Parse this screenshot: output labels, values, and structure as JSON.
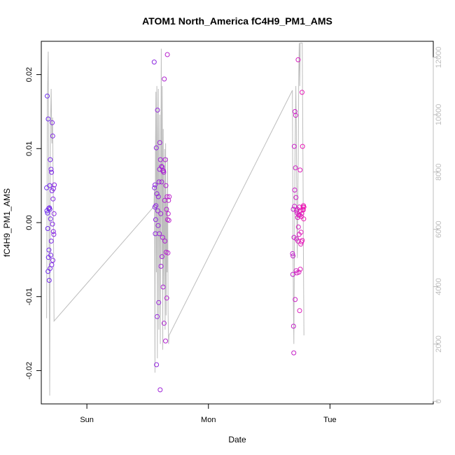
{
  "chart_data": {
    "type": "scatter",
    "title": "ATOM1 North_America fC4H9_PM1_AMS",
    "xlabel": "Date",
    "ylabel": "fC4H9_PM1_AMS",
    "x_range_days": [
      -0.375,
      2.85
    ],
    "x_ticks": [
      {
        "label": "Sun",
        "value": 0
      },
      {
        "label": "Mon",
        "value": 1
      },
      {
        "label": "Tue",
        "value": 2
      }
    ],
    "ylim": [
      -0.0245,
      0.0245
    ],
    "y_ticks": [
      -0.02,
      -0.01,
      0.0,
      0.01,
      0.02
    ],
    "y_tick_labels": [
      "-0.02",
      "-0.01",
      "0.00",
      "0.01",
      "0.02"
    ],
    "y2lim": [
      -90,
      12560
    ],
    "y2_ticks": [
      0,
      2000,
      4000,
      6000,
      8000,
      10000,
      12000
    ],
    "colors": {
      "line": "#bdbdbd",
      "points_start": "#6a2bf0",
      "points_end": "#ee1ab4",
      "axis": "#000000"
    },
    "series": [
      {
        "type": "points",
        "values": [
          [
            -0.331,
            0.0047
          ],
          [
            -0.329,
            0.0016
          ],
          [
            -0.326,
            0.0171
          ],
          [
            -0.324,
            0.0013
          ],
          [
            -0.322,
            -0.0008
          ],
          [
            -0.32,
            -0.0066
          ],
          [
            -0.318,
            0.014
          ],
          [
            -0.316,
            -0.0047
          ],
          [
            -0.314,
            0.0019
          ],
          [
            -0.312,
            -0.0037
          ],
          [
            -0.31,
            -0.0078
          ],
          [
            -0.308,
            0.002
          ],
          [
            -0.306,
            0.005
          ],
          [
            -0.304,
            0.0018
          ],
          [
            -0.303,
            -0.0062
          ],
          [
            -0.301,
            0.0085
          ],
          [
            -0.299,
            0.0005
          ],
          [
            -0.297,
            -0.0044
          ],
          [
            -0.295,
            0.0072
          ],
          [
            -0.293,
            -0.0025
          ],
          [
            -0.291,
            0.0068
          ],
          [
            -0.289,
            -0.0057
          ],
          [
            -0.287,
            0.0043
          ],
          [
            -0.285,
            0.0135
          ],
          [
            -0.283,
            -0.0002
          ],
          [
            -0.281,
            0.0117
          ],
          [
            -0.28,
            -0.0051
          ],
          [
            -0.278,
            0.0032
          ],
          [
            -0.276,
            -0.0012
          ],
          [
            -0.274,
            0.0046
          ],
          [
            -0.272,
            -0.0016
          ],
          [
            -0.27,
            0.0012
          ],
          [
            -0.268,
            0.0051
          ],
          [
            0.554,
            0.0217
          ],
          [
            0.556,
            0.0047
          ],
          [
            0.559,
            0.0021
          ],
          [
            0.561,
            0.0051
          ],
          [
            0.563,
            -0.0015
          ],
          [
            0.566,
            0.0004
          ],
          [
            0.568,
            0.0023
          ],
          [
            0.571,
            0.0101
          ],
          [
            0.573,
            -0.0192
          ],
          [
            0.576,
            0.0039
          ],
          [
            0.578,
            -0.0127
          ],
          [
            0.581,
            0.0152
          ],
          [
            0.583,
            0.0016
          ],
          [
            0.586,
            -0.0004
          ],
          [
            0.588,
            0.0035
          ],
          [
            0.591,
            -0.0108
          ],
          [
            0.593,
            0.0055
          ],
          [
            0.596,
            -0.0015
          ],
          [
            0.598,
            0.0072
          ],
          [
            0.6,
            0.0108
          ],
          [
            0.603,
            -0.0226
          ],
          [
            0.605,
            0.0085
          ],
          [
            0.608,
            0.0012
          ],
          [
            0.61,
            -0.0059
          ],
          [
            0.613,
            0.0076
          ],
          [
            0.615,
            0.0055
          ],
          [
            0.618,
            -0.0046
          ],
          [
            0.62,
            0.0075
          ],
          [
            0.623,
            -0.002
          ],
          [
            0.625,
            0.007
          ],
          [
            0.627,
            -0.0087
          ],
          [
            0.63,
            0.007
          ],
          [
            0.632,
            0.0068
          ],
          [
            0.635,
            -0.0136
          ],
          [
            0.637,
            0.0194
          ],
          [
            0.64,
            0.003
          ],
          [
            0.642,
            -0.0025
          ],
          [
            0.645,
            0.0085
          ],
          [
            0.647,
            -0.016
          ],
          [
            0.65,
            0.005
          ],
          [
            0.652,
            -0.004
          ],
          [
            0.655,
            0.0018
          ],
          [
            0.657,
            -0.0102
          ],
          [
            0.66,
            0.0035
          ],
          [
            0.662,
            0.0227
          ],
          [
            0.664,
            0.0004
          ],
          [
            0.667,
            -0.0041
          ],
          [
            0.669,
            0.0012
          ],
          [
            0.672,
            0.003
          ],
          [
            0.675,
            0.0003
          ],
          [
            0.677,
            0.0035
          ],
          [
            1.692,
            -0.0042
          ],
          [
            1.694,
            -0.007
          ],
          [
            1.696,
            -0.0045
          ],
          [
            1.698,
            0.0018
          ],
          [
            1.7,
            -0.014
          ],
          [
            1.702,
            -0.0176
          ],
          [
            1.704,
            -0.002
          ],
          [
            1.706,
            0.0103
          ],
          [
            1.708,
            0.0022
          ],
          [
            1.71,
            0.0044
          ],
          [
            1.712,
            0.015
          ],
          [
            1.714,
            -0.0104
          ],
          [
            1.716,
            0.0074
          ],
          [
            1.718,
            0.0145
          ],
          [
            1.72,
            0.0034
          ],
          [
            1.722,
            -0.0065
          ],
          [
            1.724,
            0.0016
          ],
          [
            1.726,
            -0.0022
          ],
          [
            1.728,
            -0.0068
          ],
          [
            1.73,
            0.0013
          ],
          [
            1.732,
            0.0018
          ],
          [
            1.734,
            0.0007
          ],
          [
            1.736,
            -0.0025
          ],
          [
            1.738,
            0.022
          ],
          [
            1.74,
            -0.0006
          ],
          [
            1.742,
            0.001
          ],
          [
            1.744,
            -0.0067
          ],
          [
            1.746,
            -0.0016
          ],
          [
            1.748,
            0.0021
          ],
          [
            1.75,
            -0.0119
          ],
          [
            1.752,
            0.001
          ],
          [
            1.754,
            0.0071
          ],
          [
            1.756,
            -0.0063
          ],
          [
            1.758,
            0.0016
          ],
          [
            1.76,
            -0.0029
          ],
          [
            1.762,
            -0.0013
          ],
          [
            1.764,
            0.0008
          ],
          [
            1.766,
            -0.0026
          ],
          [
            1.768,
            0.0012
          ],
          [
            1.77,
            0.0176
          ],
          [
            1.772,
            -0.0024
          ],
          [
            1.774,
            0.0103
          ],
          [
            1.776,
            0.0018
          ],
          [
            1.778,
            0.0021
          ],
          [
            1.78,
            0.0017
          ],
          [
            1.782,
            0.0023
          ],
          [
            1.784,
            0.0005
          ],
          [
            1.786,
            0.0021
          ]
        ]
      },
      {
        "type": "line",
        "axis": "right",
        "values": [
          [
            -0.331,
            2900
          ],
          [
            -0.325,
            10500
          ],
          [
            -0.318,
            12200
          ],
          [
            -0.312,
            6500
          ],
          [
            -0.306,
            200
          ],
          [
            -0.3,
            9500
          ],
          [
            -0.294,
            10900
          ],
          [
            -0.288,
            9000
          ],
          [
            -0.282,
            9900
          ],
          [
            -0.276,
            7000
          ],
          [
            -0.27,
            2800
          ],
          [
            0.552,
            6800
          ],
          [
            0.556,
            7500
          ],
          [
            0.56,
            1000
          ],
          [
            0.564,
            8700
          ],
          [
            0.568,
            10800
          ],
          [
            0.572,
            4500
          ],
          [
            0.576,
            11000
          ],
          [
            0.58,
            1500
          ],
          [
            0.584,
            9000
          ],
          [
            0.588,
            10900
          ],
          [
            0.592,
            2500
          ],
          [
            0.596,
            6500
          ],
          [
            0.6,
            10000
          ],
          [
            0.604,
            2000
          ],
          [
            0.608,
            7000
          ],
          [
            0.612,
            12300
          ],
          [
            0.616,
            5000
          ],
          [
            0.62,
            11000
          ],
          [
            0.624,
            1800
          ],
          [
            0.628,
            9500
          ],
          [
            0.632,
            4000
          ],
          [
            0.636,
            6000
          ],
          [
            0.64,
            8800
          ],
          [
            0.644,
            2500
          ],
          [
            0.648,
            9000
          ],
          [
            0.652,
            3000
          ],
          [
            0.656,
            7000
          ],
          [
            0.66,
            4500
          ],
          [
            0.664,
            8500
          ],
          [
            0.668,
            3200
          ],
          [
            0.672,
            2000
          ],
          [
            0.676,
            2300
          ],
          [
            1.691,
            10850
          ],
          [
            1.695,
            6500
          ],
          [
            1.699,
            3500
          ],
          [
            1.703,
            2000
          ],
          [
            1.707,
            5000
          ],
          [
            1.711,
            8000
          ],
          [
            1.715,
            9500
          ],
          [
            1.719,
            11000
          ],
          [
            1.723,
            9500
          ],
          [
            1.727,
            6500
          ],
          [
            1.731,
            5000
          ],
          [
            1.735,
            7000
          ],
          [
            1.739,
            8500
          ],
          [
            1.743,
            11500
          ],
          [
            1.747,
            12500
          ],
          [
            1.751,
            11000
          ],
          [
            1.755,
            12500
          ],
          [
            1.76,
            12500
          ],
          [
            1.766,
            12500
          ],
          [
            1.772,
            12500
          ],
          [
            1.778,
            8000
          ],
          [
            1.782,
            5000
          ],
          [
            1.786,
            2300
          ]
        ]
      }
    ]
  }
}
